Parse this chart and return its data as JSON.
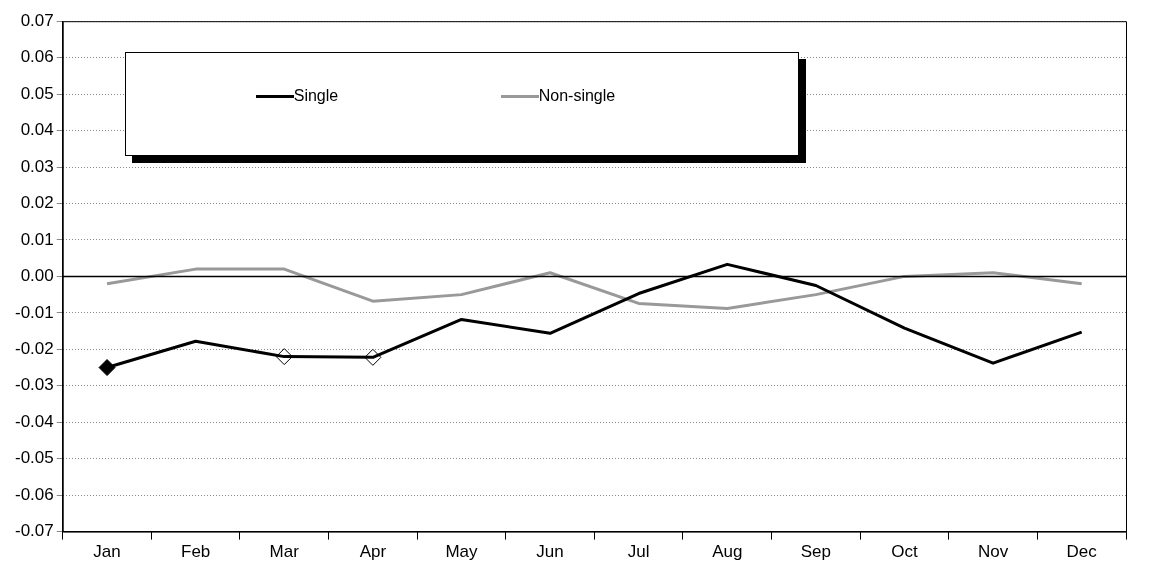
{
  "chart_data": {
    "type": "line",
    "categories": [
      "Jan",
      "Feb",
      "Mar",
      "Apr",
      "May",
      "Jun",
      "Jul",
      "Aug",
      "Sep",
      "Oct",
      "Nov",
      "Dec"
    ],
    "series": [
      {
        "name": "Single",
        "color": "#000000",
        "values": [
          -0.025,
          -0.0178,
          -0.022,
          -0.0222,
          -0.0118,
          -0.0156,
          -0.0047,
          0.0033,
          -0.0025,
          -0.0142,
          -0.0238,
          -0.0153
        ]
      },
      {
        "name": "Non-single",
        "color": "#999999",
        "values": [
          -0.002,
          0.002,
          0.002,
          -0.0068,
          -0.005,
          0.001,
          -0.0074,
          -0.0088,
          -0.005,
          0,
          0.001,
          -0.002
        ]
      },
      {
        "type": "scatter",
        "x": [
          "Jan"
        ],
        "values": [
          -0.025
        ],
        "color": "#000000",
        "marker": "diamond"
      },
      {
        "type": "scatter",
        "x": [
          "Mar",
          "Apr"
        ],
        "values": [
          -0.022,
          -0.0222
        ],
        "color": "#ffffff",
        "marker": "diamond"
      }
    ],
    "ylim": [
      -0.07,
      0.07
    ],
    "yticks": [
      {
        "value": -0.07,
        "label": "-0.07"
      },
      {
        "value": -0.06,
        "label": "-0.06"
      },
      {
        "value": -0.05,
        "label": "-0.05"
      },
      {
        "value": -0.04,
        "label": "-0.04"
      },
      {
        "value": -0.03,
        "label": "-0.03"
      },
      {
        "value": -0.02,
        "label": "-0.02"
      },
      {
        "value": -0.01,
        "label": "-0.01"
      },
      {
        "value": 0,
        "label": "0.00"
      },
      {
        "value": 0.01,
        "label": "0.01"
      },
      {
        "value": 0.02,
        "label": "0.02"
      },
      {
        "value": 0.03,
        "label": "0.03"
      },
      {
        "value": 0.04,
        "label": "0.04"
      },
      {
        "value": 0.05,
        "label": "0.05"
      },
      {
        "value": 0.06,
        "label": "0.06"
      },
      {
        "value": 0.07,
        "label": "0.07"
      }
    ],
    "grid": "y",
    "legend": "top left",
    "marker": "none",
    "ref_lines": [
      {
        "axis": "y",
        "value": 0
      }
    ]
  }
}
